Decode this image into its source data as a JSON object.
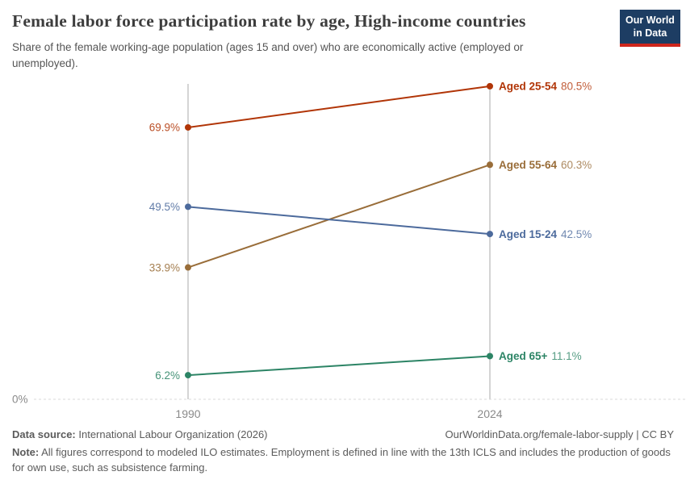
{
  "header": {
    "title": "Female labor force participation rate by age, High-income countries",
    "subtitle": "Share of the female working-age population (ages 15 and over) who are economically active (employed or unemployed).",
    "logo": {
      "line1": "Our World",
      "line2": "in Data",
      "bg_color": "#1d3d63",
      "accent_color": "#ce261c"
    }
  },
  "chart_data": {
    "type": "line",
    "variant": "slope",
    "title": "Female labor force participation rate by age, High-income countries",
    "x": [
      1990,
      2024
    ],
    "x_tick_labels": [
      "1990",
      "2024"
    ],
    "baseline_label": "0%",
    "ylim": [
      0,
      81
    ],
    "unit": "%",
    "grid": "zero-baseline-dashed",
    "legend_position": "right-inline",
    "series": [
      {
        "name": "Aged 25-54",
        "values": [
          69.9,
          80.5
        ],
        "color": "#B13507"
      },
      {
        "name": "Aged 55-64",
        "values": [
          33.9,
          60.3
        ],
        "color": "#996D39"
      },
      {
        "name": "Aged 15-24",
        "values": [
          49.5,
          42.5
        ],
        "color": "#4C6A9C"
      },
      {
        "name": "Aged 65+",
        "values": [
          6.2,
          11.1
        ],
        "color": "#2C8465"
      }
    ]
  },
  "footer": {
    "source_label": "Data source:",
    "source_text": " International Labour Organization (2026)",
    "link_text": "OurWorldinData.org/female-labor-supply | CC BY",
    "note_label": "Note:",
    "note_text": " All figures correspond to modeled ILO estimates. Employment is defined in line with the 13th ICLS and includes the production of goods for own use, such as subsistence farming."
  }
}
